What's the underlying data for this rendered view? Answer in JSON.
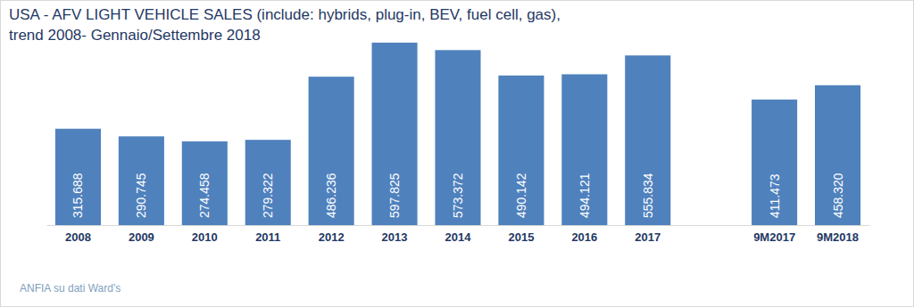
{
  "chart_data": {
    "type": "bar",
    "title": "USA - AFV LIGHT VEHICLE SALES (include: hybrids, plug-in, BEV, fuel cell, gas),\ntrend 2008- Gennaio/Settembre 2018",
    "annotations": [
      "ANFIA su dati Ward's"
    ],
    "categories": [
      "2008",
      "2009",
      "2010",
      "2011",
      "2012",
      "2013",
      "2014",
      "2015",
      "2016",
      "2017",
      null,
      "9M2017",
      "9M2018"
    ],
    "values": [
      315688,
      290745,
      274458,
      279322,
      486236,
      597825,
      573372,
      490142,
      494121,
      555834,
      null,
      411473,
      458320
    ],
    "value_labels": [
      "315.688",
      "290.745",
      "274.458",
      "279.322",
      "486.236",
      "597.825",
      "573.372",
      "490.142",
      "494.121",
      "555.834",
      null,
      "411.473",
      "458.320"
    ],
    "color": "#4F81BD",
    "ylim": [
      0,
      650000
    ],
    "data_labels": true,
    "tick_labels": "x",
    "grid": false
  }
}
